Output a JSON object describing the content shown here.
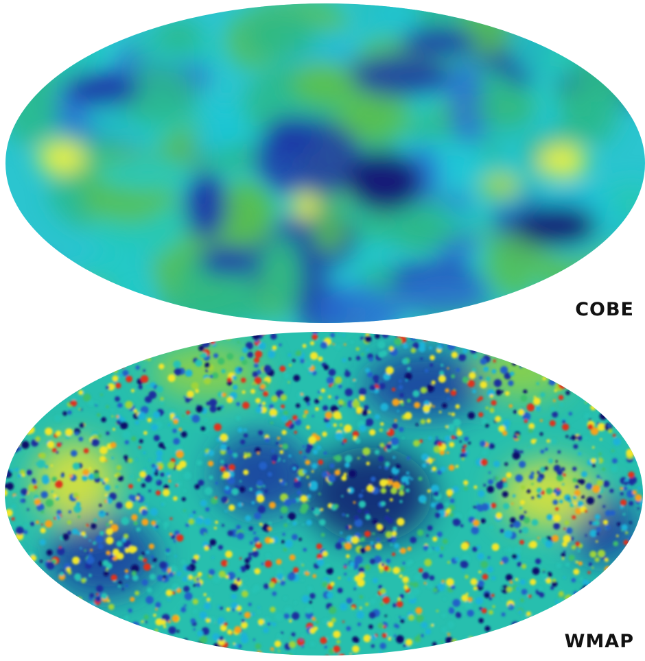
{
  "maps": {
    "cobe": {
      "label": "COBE",
      "palette": [
        "#141a78",
        "#1d3aa8",
        "#2a6fd2",
        "#1fc6d8",
        "#22c9c4",
        "#2bb88a",
        "#58c052",
        "#9fd63e",
        "#e3ef46"
      ]
    },
    "wmap": {
      "label": "WMAP",
      "palette": [
        "#0d0f6a",
        "#1a2f9e",
        "#2161c8",
        "#1fb2d8",
        "#26c2b4",
        "#3ebf6c",
        "#9fd43a",
        "#f2e62a",
        "#f5a21e",
        "#e0311b"
      ]
    }
  },
  "colors": {
    "label": "#111111",
    "background": "#ffffff"
  }
}
